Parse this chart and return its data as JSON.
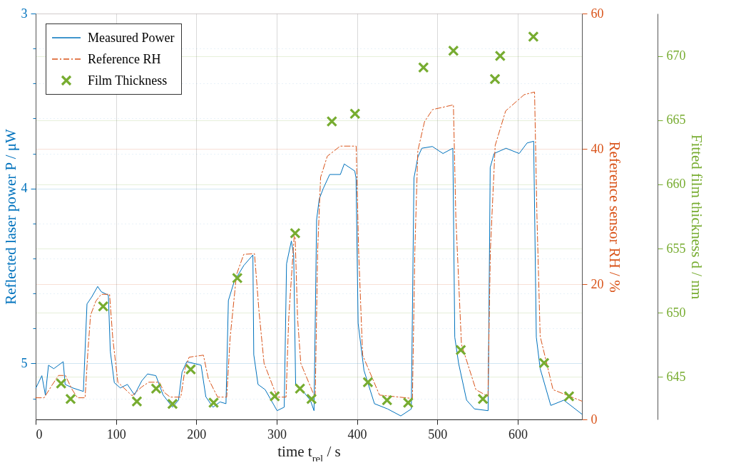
{
  "chart_data": {
    "type": "line",
    "xlabel": "time t$_{rel}$ / s",
    "ylabel": "Reflected laser power P / μW",
    "y2label": "Reference sensor RH / %",
    "y3label": "Fitted film thickness d / nm",
    "xlim": [
      0,
      680
    ],
    "xticks": [
      0,
      100,
      200,
      300,
      400,
      500,
      600
    ],
    "ylim": [
      5.32,
      3
    ],
    "yticks": [
      3,
      {
        "value": 3.2,
        "label": null
      },
      {
        "value": 3.4,
        "label": null
      },
      {
        "value": 3.6,
        "label": null
      },
      {
        "value": 3.8,
        "label": null
      },
      4,
      {
        "value": 4.2,
        "label": null
      },
      {
        "value": 4.4,
        "label": null
      },
      {
        "value": 4.6,
        "label": null
      },
      {
        "value": 4.8,
        "label": null
      },
      5,
      {
        "value": 5.2,
        "label": null
      }
    ],
    "y2lim": [
      0,
      60
    ],
    "y2ticks": [
      0,
      20,
      40,
      60
    ],
    "y3lim": [
      641.7,
      673.3
    ],
    "y3ticks": [
      645,
      650,
      655,
      660,
      665,
      670
    ],
    "grid": true,
    "legend": "top left",
    "series": [
      {
        "name": "Measured Power",
        "type": "line",
        "color": "#0072bd",
        "line_style": "solid",
        "x": [
          0.3,
          7.7,
          12.1,
          16,
          22.5,
          34.3,
          36.7,
          46.1,
          59.4,
          63.9,
          69.8,
          77.2,
          81.6,
          90.5,
          92.9,
          97.9,
          105.3,
          114.2,
          123,
          132,
          139.3,
          149.7,
          158.6,
          170.4,
          177.8,
          182.2,
          188.1,
          197,
          205.9,
          211.8,
          220.7,
          229.5,
          236.9,
          239.9,
          247.3,
          259.1,
          270.4,
          271.5,
          276.8,
          285.7,
          300.5,
          309.4,
          312.3,
          318.3,
          321.2,
          323.6,
          333,
          341.9,
          346.5,
          349.7,
          353,
          358,
          366,
          379.3,
          384.1,
          397.2,
          398.8,
          401.4,
          408.7,
          421.7,
          438.1,
          454.5,
          467.6,
          470.9,
          475.8,
          480.7,
          493.8,
          507,
          519.3,
          521.7,
          526.5,
          536.4,
          546.2,
          563.2,
          565.8,
          570.7,
          585.5,
          601.9,
          611.7,
          619.9,
          623.2,
          628,
          641.2,
          657.5,
          680
        ],
        "values": [
          5.14,
          5.07,
          5.18,
          5.01,
          5.03,
          4.99,
          5.12,
          5.14,
          5.16,
          4.66,
          4.62,
          4.56,
          4.59,
          4.61,
          4.93,
          5.11,
          5.14,
          5.12,
          5.18,
          5.1,
          5.06,
          5.07,
          5.18,
          5.25,
          5.21,
          5.05,
          4.99,
          5,
          5.01,
          5.19,
          5.25,
          5.22,
          5.23,
          4.64,
          4.53,
          4.44,
          4.38,
          4.95,
          5.12,
          5.15,
          5.27,
          5.25,
          4.43,
          4.3,
          4.38,
          5.12,
          5.16,
          5.21,
          5.27,
          4.18,
          4.06,
          4,
          3.92,
          3.92,
          3.86,
          3.9,
          3.94,
          4.77,
          5.04,
          5.23,
          5.26,
          5.3,
          5.26,
          3.94,
          3.82,
          3.77,
          3.76,
          3.8,
          3.77,
          4.85,
          5,
          5.21,
          5.26,
          5.27,
          3.88,
          3.8,
          3.77,
          3.8,
          3.74,
          3.73,
          4.85,
          5.03,
          5.24,
          5.21,
          5.29
        ]
      },
      {
        "name": "Reference RH",
        "type": "line",
        "axis": "y2",
        "color": "#d95319",
        "line_style": "dashed",
        "x": [
          0,
          10.6,
          20,
          28.4,
          37,
          45,
          52,
          61.5,
          65,
          68.3,
          75,
          81.6,
          92,
          96,
          102.3,
          120,
          132,
          140.8,
          154,
          160,
          167.4,
          180.7,
          186,
          191,
          208.8,
          215,
          226.5,
          237.8,
          242,
          250,
          259,
          272.4,
          278,
          284.3,
          300.5,
          311.7,
          315,
          321.8,
          323,
          326,
          330,
          345,
          348,
          351,
          354.7,
          363,
          379,
          399,
          402,
          407,
          428,
          469,
          472,
          475.7,
          484,
          494,
          520,
          523,
          530,
          548,
          563,
          566,
          572,
          585,
          608,
          621,
          624,
          628,
          644,
          680
        ],
        "values": [
          3.2,
          3.2,
          5,
          6.5,
          6.5,
          4.5,
          3.2,
          3.2,
          10,
          15.4,
          17.5,
          18.5,
          18.5,
          12,
          5.5,
          3.5,
          4.8,
          5.5,
          5.5,
          4,
          3.3,
          3.3,
          7.5,
          9.2,
          9.5,
          6,
          3.3,
          3.3,
          12,
          21.4,
          24.4,
          24.5,
          16,
          8.3,
          3.3,
          3.3,
          15,
          27.1,
          27,
          15,
          8.3,
          4,
          3.3,
          25,
          35.8,
          38.9,
          40.4,
          40.4,
          25,
          9.5,
          3.6,
          3.1,
          25,
          39.7,
          44,
          45.8,
          46.5,
          30,
          11.1,
          4.4,
          3.4,
          25,
          40.5,
          45.6,
          48,
          48.4,
          30,
          12.3,
          4.4,
          2.7
        ]
      },
      {
        "name": "Film Thickness",
        "type": "scatter",
        "axis": "y3",
        "color": "#77ac30",
        "marker": "cross",
        "x": [
          31.7,
          43.5,
          84,
          126,
          150,
          170.4,
          193,
          221.5,
          251,
          297.6,
          323,
          329,
          343.4,
          368.7,
          397.5,
          413.6,
          437.4,
          463.7,
          482.7,
          520,
          529.2,
          556.7,
          571.7,
          578.2,
          619.5,
          632.9,
          664
        ],
        "values": [
          644.5,
          643.3,
          650.5,
          643.1,
          644.1,
          642.9,
          645.6,
          643,
          652.7,
          643.5,
          656.2,
          644.1,
          643.3,
          664.9,
          665.5,
          644.6,
          643.2,
          643,
          669.1,
          670.4,
          647.1,
          643.3,
          668.2,
          670,
          671.5,
          646.1,
          643.5
        ]
      }
    ]
  }
}
